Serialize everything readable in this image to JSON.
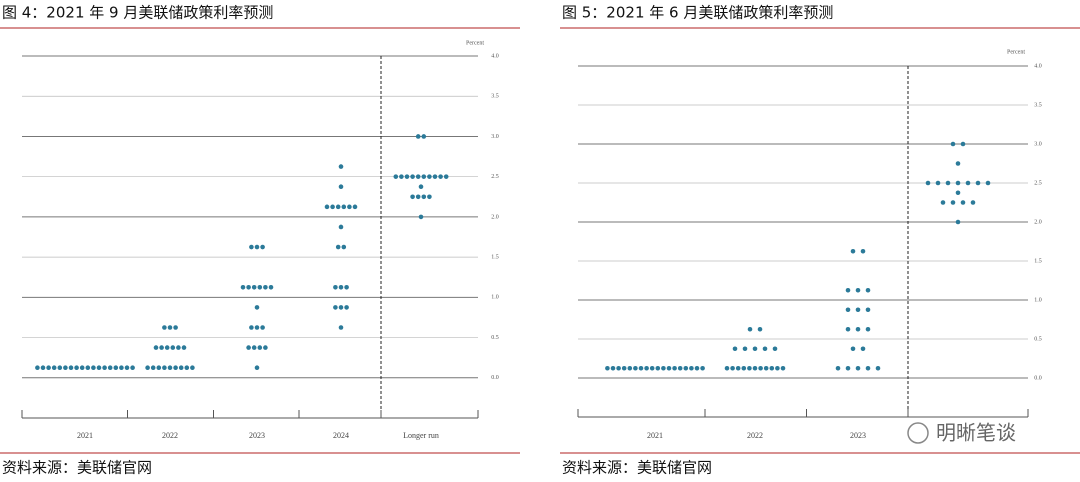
{
  "chart_data": [
    {
      "type": "dot",
      "title": "图 4：2021 年 9 月美联储政策利率预测",
      "source": "资料来源：美联储官网",
      "y_unit": "Percent",
      "categories": [
        "2021",
        "2022",
        "2023",
        "2024",
        "Longer run"
      ],
      "color": "#2b7a99",
      "ylim": [
        -0.5,
        4.0
      ],
      "yticks": [
        {
          "value": 0,
          "label": "0.0"
        },
        {
          "value": 0.5,
          "label": "0.5"
        },
        {
          "value": 1,
          "label": "1.0"
        },
        {
          "value": 1.5,
          "label": "1.5"
        },
        {
          "value": 2,
          "label": "2.0"
        },
        {
          "value": 2.5,
          "label": "2.5"
        },
        {
          "value": 3,
          "label": "3.0"
        },
        {
          "value": 3.5,
          "label": "3.5"
        },
        {
          "value": 4,
          "label": "4.0"
        }
      ],
      "dots": [
        [
          {
            "value": 0.125,
            "count": 18
          }
        ],
        [
          {
            "value": 0.125,
            "count": 9
          },
          {
            "value": 0.375,
            "count": 6
          },
          {
            "value": 0.625,
            "count": 3
          }
        ],
        [
          {
            "value": 0.125,
            "count": 1
          },
          {
            "value": 0.375,
            "count": 4
          },
          {
            "value": 0.625,
            "count": 3
          },
          {
            "value": 0.875,
            "count": 1
          },
          {
            "value": 1.125,
            "count": 6
          },
          {
            "value": 1.625,
            "count": 3
          }
        ],
        [
          {
            "value": 0.625,
            "count": 1
          },
          {
            "value": 0.875,
            "count": 3
          },
          {
            "value": 1.125,
            "count": 3
          },
          {
            "value": 1.625,
            "count": 2
          },
          {
            "value": 1.875,
            "count": 1
          },
          {
            "value": 2.125,
            "count": 6
          },
          {
            "value": 2.375,
            "count": 1
          },
          {
            "value": 2.625,
            "count": 1
          }
        ],
        [
          {
            "value": 2.0,
            "count": 1
          },
          {
            "value": 2.25,
            "count": 4
          },
          {
            "value": 2.375,
            "count": 1
          },
          {
            "value": 2.5,
            "count": 10
          },
          {
            "value": 3.0,
            "count": 2
          }
        ]
      ]
    },
    {
      "type": "dot",
      "title": "图 5：2021 年 6 月美联储政策利率预测",
      "source": "资料来源：美联储官网",
      "y_unit": "Percent",
      "watermark": "明晰笔谈",
      "categories": [
        "2021",
        "2022",
        "2023",
        null
      ],
      "color": "#2b7a99",
      "ylim": [
        -0.5,
        4.0
      ],
      "yticks": [
        {
          "value": 0,
          "label": "0.0"
        },
        {
          "value": 0.5,
          "label": "0.5"
        },
        {
          "value": 1,
          "label": "1.0"
        },
        {
          "value": 1.5,
          "label": "1.5"
        },
        {
          "value": 2,
          "label": "2.0"
        },
        {
          "value": 2.5,
          "label": "2.5"
        },
        {
          "value": 3,
          "label": "3.0"
        },
        {
          "value": 3.5,
          "label": "3.5"
        },
        {
          "value": 4,
          "label": "4.0"
        }
      ],
      "dots": [
        [
          {
            "value": 0.125,
            "count": 18
          }
        ],
        [
          {
            "value": 0.125,
            "count": 11
          },
          {
            "value": 0.375,
            "count": 5
          },
          {
            "value": 0.625,
            "count": 2
          }
        ],
        [
          {
            "value": 0.125,
            "count": 5
          },
          {
            "value": 0.375,
            "count": 2
          },
          {
            "value": 0.625,
            "count": 3
          },
          {
            "value": 0.875,
            "count": 3
          },
          {
            "value": 1.125,
            "count": 3
          },
          {
            "value": 1.625,
            "count": 2
          }
        ],
        [
          {
            "value": 2.0,
            "count": 1
          },
          {
            "value": 2.25,
            "count": 4
          },
          {
            "value": 2.375,
            "count": 1
          },
          {
            "value": 2.5,
            "count": 7
          },
          {
            "value": 2.75,
            "count": 1
          },
          {
            "value": 3.0,
            "count": 2
          }
        ]
      ]
    }
  ]
}
